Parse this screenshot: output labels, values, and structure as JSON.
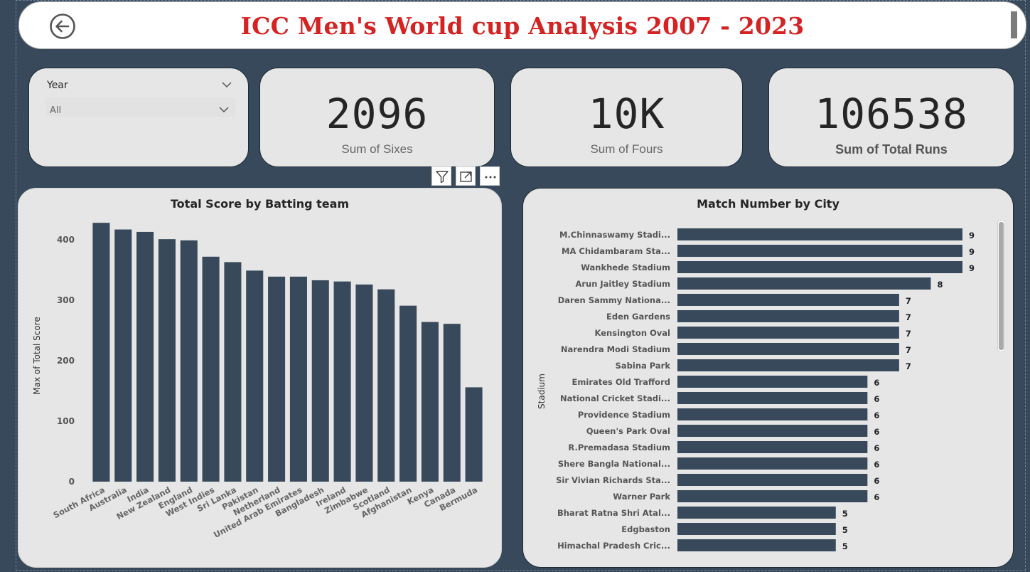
{
  "header": {
    "title": "ICC Men's World cup Analysis 2007 - 2023",
    "back_icon": "arrow-left-circle-icon"
  },
  "slicer": {
    "label": "Year",
    "value": "All"
  },
  "kpis": [
    {
      "value": "2096",
      "label": "Sum of Sixes"
    },
    {
      "value": "10K",
      "label": "Sum of Fours"
    },
    {
      "value": "106538",
      "label": "Sum of Total Runs"
    }
  ],
  "toolbar": {
    "filter_icon": "filter-icon",
    "focus_icon": "focus-mode-icon",
    "more_icon": "more-options-icon"
  },
  "colors": {
    "bar": "#37495a",
    "title": "#d32323",
    "background": "#37495a"
  },
  "chart_data": [
    {
      "type": "bar",
      "title": "Total Score by Batting team",
      "xlabel": "",
      "ylabel": "Max of Total Score",
      "ylim": [
        0,
        440
      ],
      "yticks": [
        0,
        100,
        200,
        300,
        400
      ],
      "categories": [
        "South Africa",
        "Australia",
        "India",
        "New Zealand",
        "England",
        "West Indies",
        "Sri Lanka",
        "Pakistan",
        "Netherland",
        "United Arab Emirates",
        "Bangladesh",
        "Ireland",
        "Zimbabwe",
        "Scotland",
        "Afghanistan",
        "Kenya",
        "Canada",
        "Bermuda"
      ],
      "values": [
        428,
        417,
        413,
        401,
        399,
        372,
        363,
        349,
        339,
        339,
        333,
        331,
        326,
        318,
        291,
        264,
        261,
        156
      ]
    },
    {
      "type": "bar",
      "orientation": "horizontal",
      "title": "Match Number by City",
      "ylabel": "Stadium",
      "xlim": [
        0,
        9
      ],
      "categories": [
        "M.Chinnaswamy Stadi...",
        "MA Chidambaram Sta...",
        "Wankhede Stadium",
        "Arun Jaitley Stadium",
        "Daren Sammy Nationa...",
        "Eden Gardens",
        "Kensington Oval",
        "Narendra Modi Stadium",
        "Sabina Park",
        "Emirates Old Trafford",
        "National Cricket Stadi...",
        "Providence Stadium",
        "Queen's Park Oval",
        "R.Premadasa Stadium",
        "Shere Bangla National...",
        "Sir Vivian Richards Sta...",
        "Warner Park",
        "Bharat Ratna Shri Atal...",
        "Edgbaston",
        "Himachal Pradesh Cric..."
      ],
      "values": [
        9,
        9,
        9,
        8,
        7,
        7,
        7,
        7,
        7,
        6,
        6,
        6,
        6,
        6,
        6,
        6,
        6,
        5,
        5,
        5
      ]
    }
  ]
}
